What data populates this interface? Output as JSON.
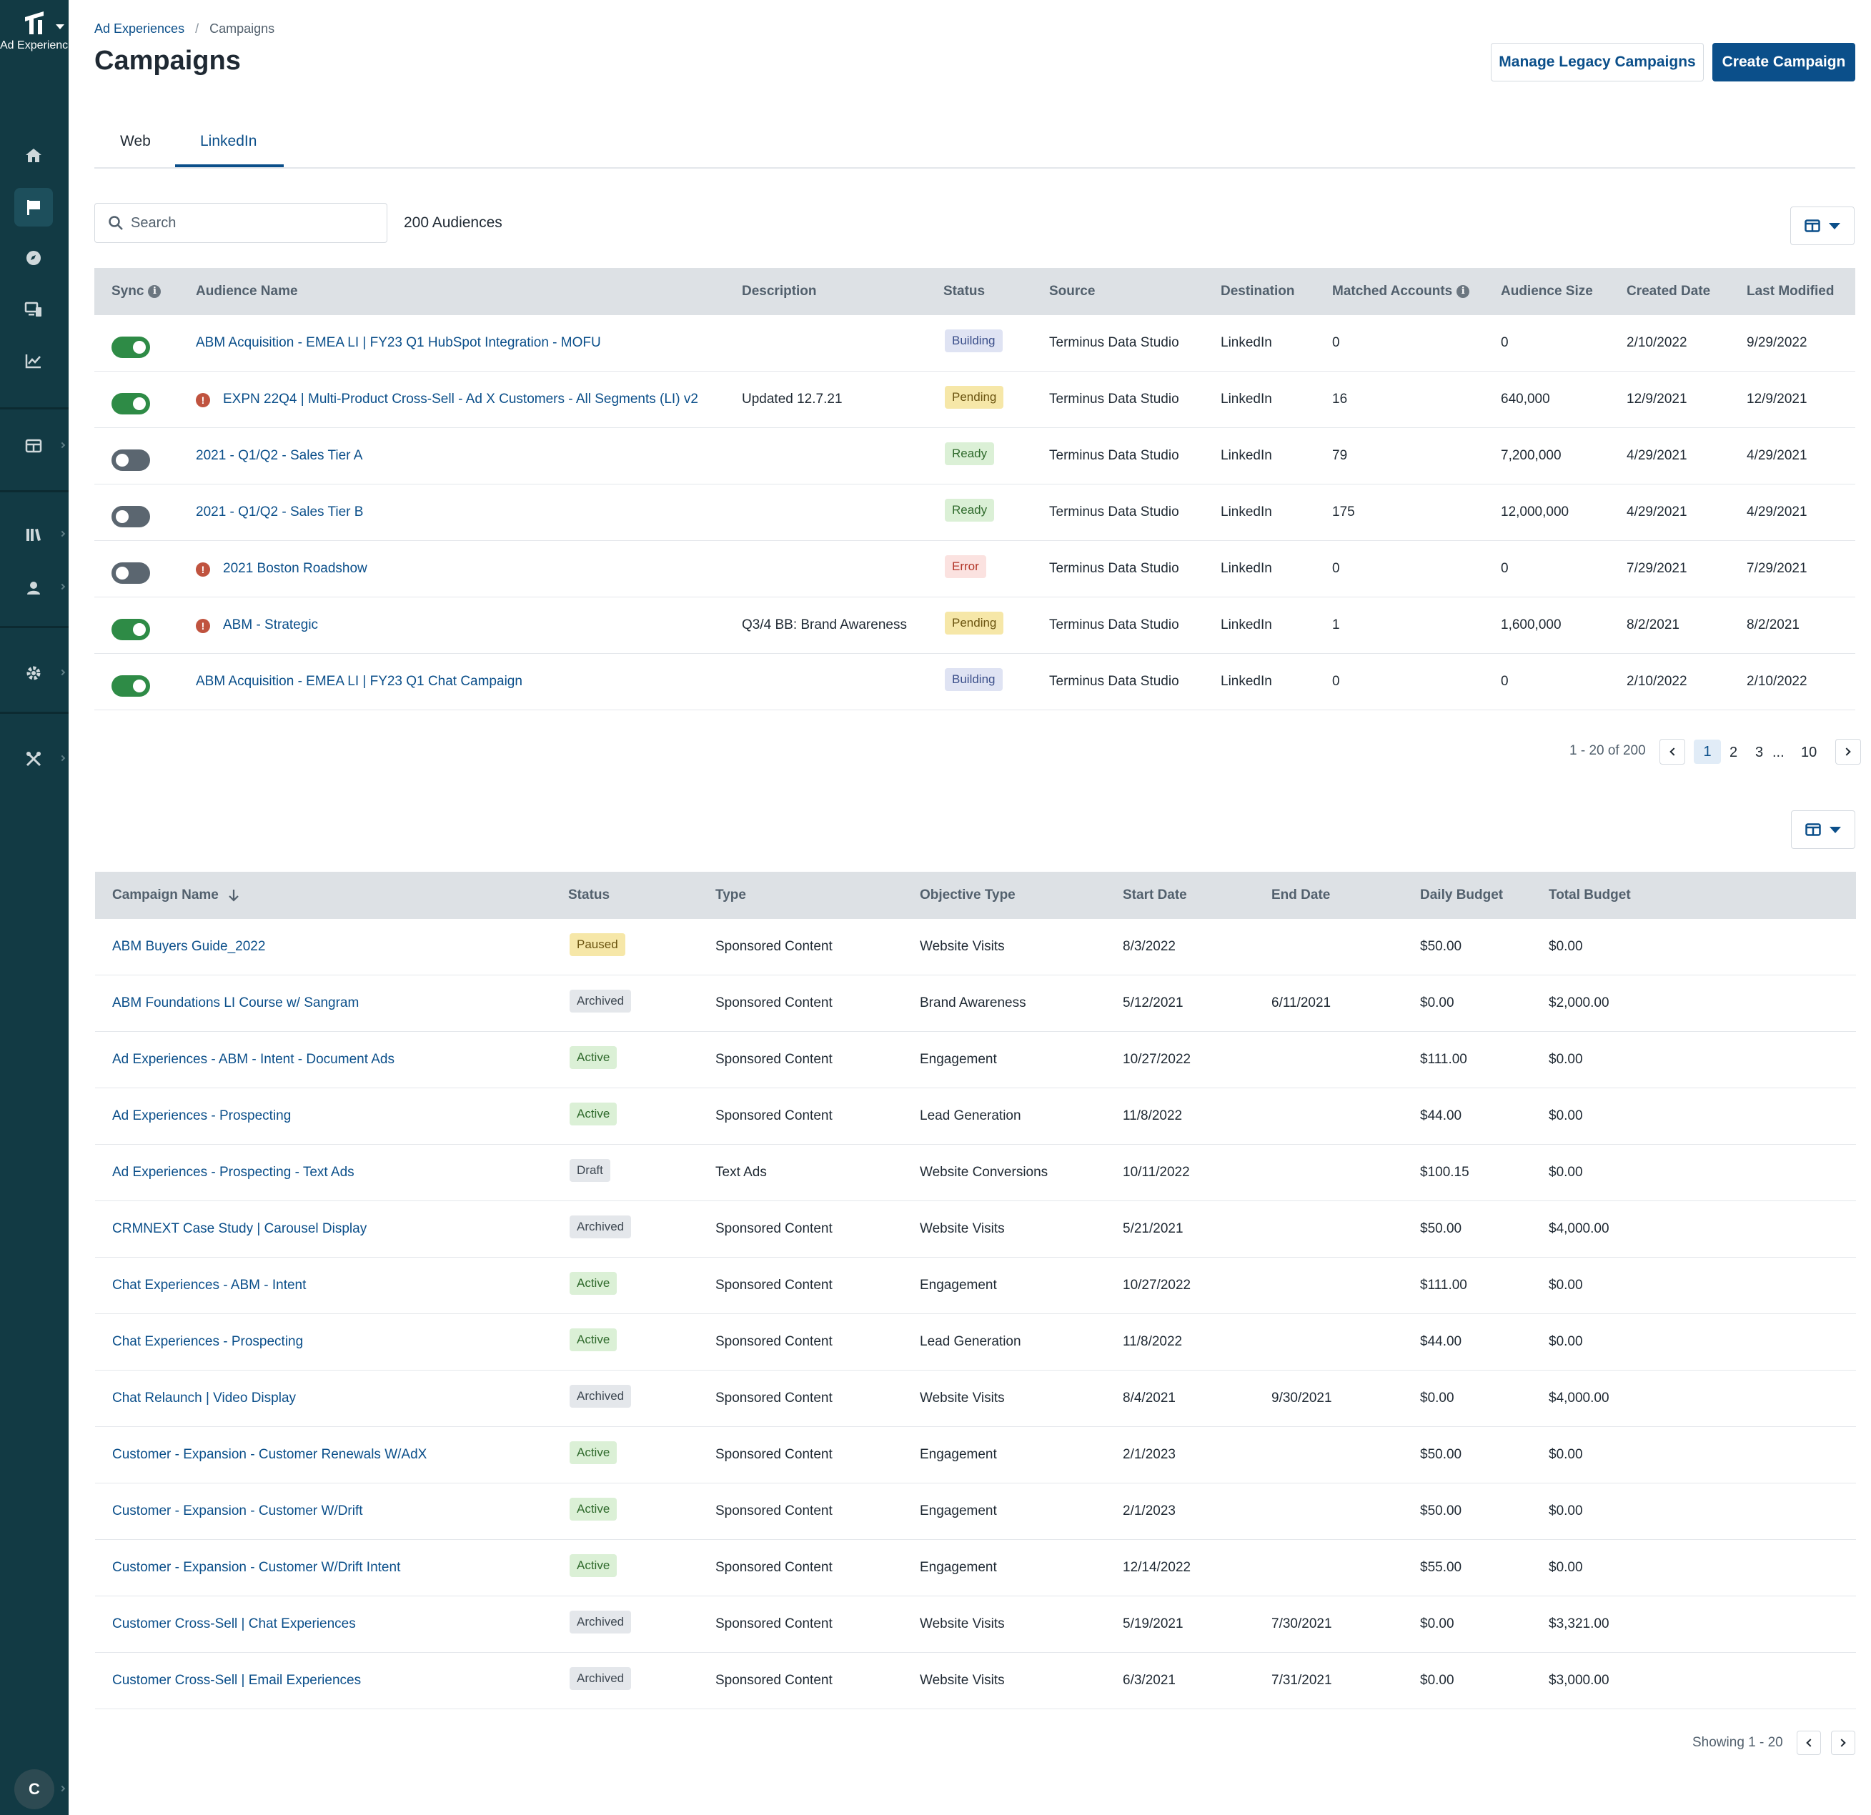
{
  "brand": {
    "label": "Ad Experienc..."
  },
  "breadcrumb": {
    "parent": "Ad Experiences",
    "separator": "/",
    "current": "Campaigns"
  },
  "header": {
    "title": "Campaigns",
    "manage_legacy_label": "Manage Legacy Campaigns",
    "create_label": "Create Campaign"
  },
  "tabs": [
    {
      "label": "Web"
    },
    {
      "label": "LinkedIn"
    }
  ],
  "search": {
    "placeholder": "Search",
    "value": ""
  },
  "audiences": {
    "count_label": "200 Audiences",
    "headers": {
      "sync": "Sync",
      "name": "Audience Name",
      "description": "Description",
      "status": "Status",
      "source": "Source",
      "destination": "Destination",
      "matched": "Matched Accounts",
      "size": "Audience Size",
      "created": "Created Date",
      "modified": "Last Modified"
    },
    "rows": [
      {
        "sync": "on",
        "warning": false,
        "name": "ABM Acquisition - EMEA LI | FY23 Q1 HubSpot Integration - MOFU",
        "description": "",
        "status": "Building",
        "source": "Terminus Data Studio",
        "destination": "LinkedIn",
        "matched": "0",
        "size": "0",
        "created": "2/10/2022",
        "modified": "9/29/2022"
      },
      {
        "sync": "on",
        "warning": true,
        "name": "EXPN 22Q4 | Multi-Product Cross-Sell - Ad X Customers - All Segments (LI) v2",
        "description": "Updated 12.7.21",
        "status": "Pending",
        "source": "Terminus Data Studio",
        "destination": "LinkedIn",
        "matched": "16",
        "size": "640,000",
        "created": "12/9/2021",
        "modified": "12/9/2021"
      },
      {
        "sync": "off",
        "warning": false,
        "name": "2021 - Q1/Q2 - Sales Tier A",
        "description": "",
        "status": "Ready",
        "source": "Terminus Data Studio",
        "destination": "LinkedIn",
        "matched": "79",
        "size": "7,200,000",
        "created": "4/29/2021",
        "modified": "4/29/2021"
      },
      {
        "sync": "off",
        "warning": false,
        "name": "2021 - Q1/Q2 - Sales Tier B",
        "description": "",
        "status": "Ready",
        "source": "Terminus Data Studio",
        "destination": "LinkedIn",
        "matched": "175",
        "size": "12,000,000",
        "created": "4/29/2021",
        "modified": "4/29/2021"
      },
      {
        "sync": "off",
        "warning": true,
        "name": "2021 Boston Roadshow",
        "description": "",
        "status": "Error",
        "source": "Terminus Data Studio",
        "destination": "LinkedIn",
        "matched": "0",
        "size": "0",
        "created": "7/29/2021",
        "modified": "7/29/2021"
      },
      {
        "sync": "on",
        "warning": true,
        "name": "ABM - Strategic",
        "description": "Q3/4 BB: Brand Awareness",
        "status": "Pending",
        "source": "Terminus Data Studio",
        "destination": "LinkedIn",
        "matched": "1",
        "size": "1,600,000",
        "created": "8/2/2021",
        "modified": "8/2/2021"
      },
      {
        "sync": "on",
        "warning": false,
        "name": "ABM Acquisition - EMEA LI | FY23 Q1 Chat Campaign",
        "description": "",
        "status": "Building",
        "source": "Terminus Data Studio",
        "destination": "LinkedIn",
        "matched": "0",
        "size": "0",
        "created": "2/10/2022",
        "modified": "2/10/2022"
      }
    ],
    "pagination": {
      "summary": "1 - 20 of 200",
      "pages": [
        "1",
        "2",
        "3"
      ],
      "ellipsis": "...",
      "last": "10"
    }
  },
  "campaigns": {
    "headers": {
      "name": "Campaign Name",
      "status": "Status",
      "type": "Type",
      "objective": "Objective Type",
      "start": "Start Date",
      "end": "End Date",
      "daily": "Daily Budget",
      "total": "Total Budget"
    },
    "rows": [
      {
        "name": "ABM Buyers Guide_2022",
        "status": "Paused",
        "type": "Sponsored Content",
        "objective": "Website Visits",
        "start": "8/3/2022",
        "end": "",
        "daily": "$50.00",
        "total": "$0.00"
      },
      {
        "name": "ABM Foundations LI Course w/ Sangram",
        "status": "Archived",
        "type": "Sponsored Content",
        "objective": "Brand Awareness",
        "start": "5/12/2021",
        "end": "6/11/2021",
        "daily": "$0.00",
        "total": "$2,000.00"
      },
      {
        "name": "Ad Experiences - ABM - Intent - Document Ads",
        "status": "Active",
        "type": "Sponsored Content",
        "objective": "Engagement",
        "start": "10/27/2022",
        "end": "",
        "daily": "$111.00",
        "total": "$0.00"
      },
      {
        "name": "Ad Experiences - Prospecting",
        "status": "Active",
        "type": "Sponsored Content",
        "objective": "Lead Generation",
        "start": "11/8/2022",
        "end": "",
        "daily": "$44.00",
        "total": "$0.00"
      },
      {
        "name": "Ad Experiences - Prospecting - Text Ads",
        "status": "Draft",
        "type": "Text Ads",
        "objective": "Website Conversions",
        "start": "10/11/2022",
        "end": "",
        "daily": "$100.15",
        "total": "$0.00"
      },
      {
        "name": "CRMNEXT Case Study | Carousel Display",
        "status": "Archived",
        "type": "Sponsored Content",
        "objective": "Website Visits",
        "start": "5/21/2021",
        "end": "",
        "daily": "$50.00",
        "total": "$4,000.00"
      },
      {
        "name": "Chat Experiences - ABM - Intent",
        "status": "Active",
        "type": "Sponsored Content",
        "objective": "Engagement",
        "start": "10/27/2022",
        "end": "",
        "daily": "$111.00",
        "total": "$0.00"
      },
      {
        "name": "Chat Experiences - Prospecting",
        "status": "Active",
        "type": "Sponsored Content",
        "objective": "Lead Generation",
        "start": "11/8/2022",
        "end": "",
        "daily": "$44.00",
        "total": "$0.00"
      },
      {
        "name": "Chat Relaunch | Video Display",
        "status": "Archived",
        "type": "Sponsored Content",
        "objective": "Website Visits",
        "start": "8/4/2021",
        "end": "9/30/2021",
        "daily": "$0.00",
        "total": "$4,000.00"
      },
      {
        "name": "Customer - Expansion - Customer Renewals W/AdX",
        "status": "Active",
        "type": "Sponsored Content",
        "objective": "Engagement",
        "start": "2/1/2023",
        "end": "",
        "daily": "$50.00",
        "total": "$0.00"
      },
      {
        "name": "Customer - Expansion - Customer W/Drift",
        "status": "Active",
        "type": "Sponsored Content",
        "objective": "Engagement",
        "start": "2/1/2023",
        "end": "",
        "daily": "$50.00",
        "total": "$0.00"
      },
      {
        "name": "Customer - Expansion - Customer W/Drift Intent",
        "status": "Active",
        "type": "Sponsored Content",
        "objective": "Engagement",
        "start": "12/14/2022",
        "end": "",
        "daily": "$55.00",
        "total": "$0.00"
      },
      {
        "name": "Customer Cross-Sell | Chat Experiences",
        "status": "Archived",
        "type": "Sponsored Content",
        "objective": "Website Visits",
        "start": "5/19/2021",
        "end": "7/30/2021",
        "daily": "$0.00",
        "total": "$3,321.00"
      },
      {
        "name": "Customer Cross-Sell | Email Experiences",
        "status": "Archived",
        "type": "Sponsored Content",
        "objective": "Website Visits",
        "start": "6/3/2021",
        "end": "7/31/2021",
        "daily": "$0.00",
        "total": "$3,000.00"
      }
    ],
    "pagination": {
      "summary": "Showing 1 - 20"
    }
  },
  "user": {
    "initial": "C"
  }
}
